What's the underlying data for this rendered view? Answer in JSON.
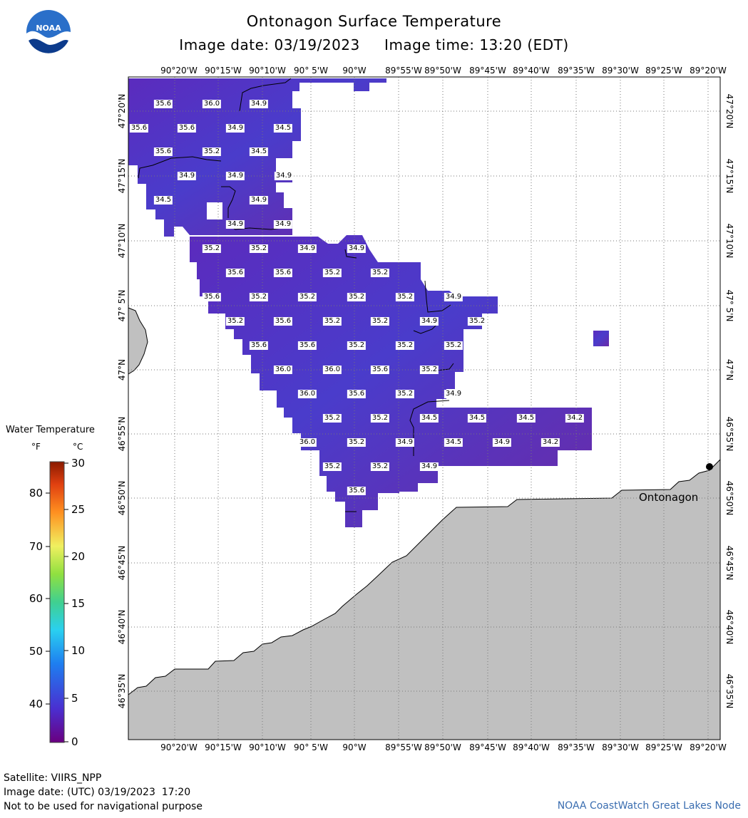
{
  "header": {
    "title": "Ontonagon Surface Temperature",
    "subtitle": "Image date: 03/19/2023     Image time: 13:20 (EDT)"
  },
  "logo": {
    "text": "NOAA",
    "icon": "noaa-logo-icon",
    "colors": [
      "#2a6fc9",
      "#0c3b8c",
      "#ffffff"
    ]
  },
  "map": {
    "lon_ticks": [
      "90°20'W",
      "90°15'W",
      "90°10'W",
      "90° 5'W",
      "90°W",
      "89°55'W",
      "89°50'W",
      "89°45'W",
      "89°40'W",
      "89°35'W",
      "89°30'W",
      "89°25'W",
      "89°20'W"
    ],
    "lat_ticks": [
      "47°20'N",
      "47°15'N",
      "47°10'N",
      "47° 5'N",
      "47°N",
      "46°55'N",
      "46°50'N",
      "46°45'N",
      "46°40'N",
      "46°35'N"
    ],
    "place": {
      "name": "Ontonagon"
    },
    "land_color": "#c0c0c0",
    "water_color": "#5a2fc0",
    "values": [
      {
        "t": "35.6"
      },
      {
        "t": "36.0"
      },
      {
        "t": "34.9"
      },
      {
        "t": "35.6"
      },
      {
        "t": "35.6"
      },
      {
        "t": "34.9"
      },
      {
        "t": "34.5"
      },
      {
        "t": "35.6"
      },
      {
        "t": "35.2"
      },
      {
        "t": "34.5"
      },
      {
        "t": "34.9"
      },
      {
        "t": "34.9"
      },
      {
        "t": "34.9"
      },
      {
        "t": "34.5"
      },
      {
        "t": "34.9"
      },
      {
        "t": "34.9"
      },
      {
        "t": "34.9"
      },
      {
        "t": "35.2"
      },
      {
        "t": "35.2"
      },
      {
        "t": "34.9"
      },
      {
        "t": "34.9"
      },
      {
        "t": "35.6"
      },
      {
        "t": "35.6"
      },
      {
        "t": "35.2"
      },
      {
        "t": "35.2"
      },
      {
        "t": "35.6"
      },
      {
        "t": "35.2"
      },
      {
        "t": "35.2"
      },
      {
        "t": "35.2"
      },
      {
        "t": "35.2"
      },
      {
        "t": "34.9"
      },
      {
        "t": "35.2"
      },
      {
        "t": "35.6"
      },
      {
        "t": "35.2"
      },
      {
        "t": "35.2"
      },
      {
        "t": "34.9"
      },
      {
        "t": "35.2"
      },
      {
        "t": "35.6"
      },
      {
        "t": "35.6"
      },
      {
        "t": "35.2"
      },
      {
        "t": "35.2"
      },
      {
        "t": "35.2"
      },
      {
        "t": "36.0"
      },
      {
        "t": "36.0"
      },
      {
        "t": "35.6"
      },
      {
        "t": "35.2"
      },
      {
        "t": "36.0"
      },
      {
        "t": "35.6"
      },
      {
        "t": "35.2"
      },
      {
        "t": "34.9"
      },
      {
        "t": "35.2"
      },
      {
        "t": "35.2"
      },
      {
        "t": "34.5"
      },
      {
        "t": "34.5"
      },
      {
        "t": "34.5"
      },
      {
        "t": "34.2"
      },
      {
        "t": "36.0"
      },
      {
        "t": "35.2"
      },
      {
        "t": "34.9"
      },
      {
        "t": "34.5"
      },
      {
        "t": "34.9"
      },
      {
        "t": "34.2"
      },
      {
        "t": "35.2"
      },
      {
        "t": "35.2"
      },
      {
        "t": "34.9"
      },
      {
        "t": "35.6"
      }
    ]
  },
  "legend": {
    "title": "Water Temperature",
    "unit_f": "°F",
    "unit_c": "°C",
    "f_ticks": [
      "80",
      "70",
      "60",
      "50",
      "40"
    ],
    "c_ticks": [
      "30",
      "25",
      "20",
      "15",
      "10",
      "5",
      "0"
    ]
  },
  "footer": {
    "satellite": "Satellite: VIIRS_NPP",
    "utc_date": "Image date: (UTC) 03/19/2023  17:20",
    "disclaimer": "Not to be used for navigational purpose",
    "credit": "NOAA CoastWatch Great Lakes Node"
  }
}
